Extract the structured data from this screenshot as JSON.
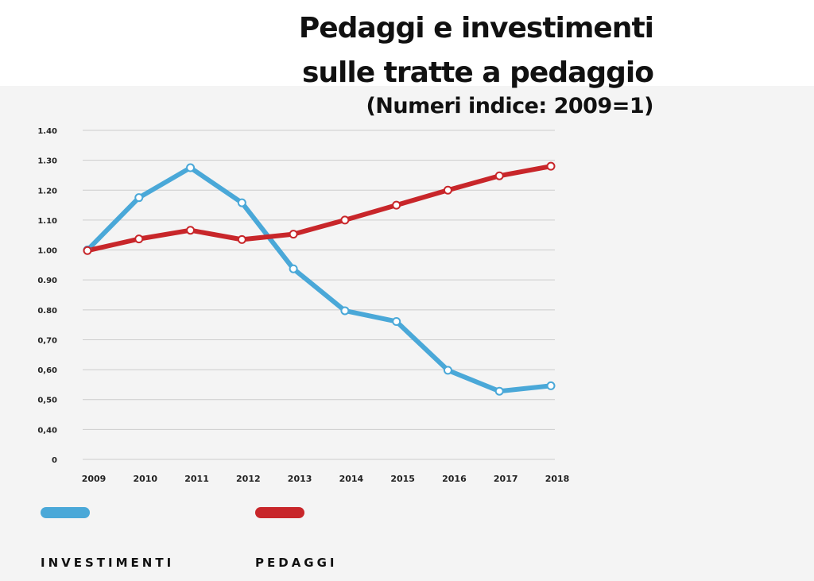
{
  "title_lines": [
    "Pedaggi e investimenti",
    "sulle tratte a pedaggio"
  ],
  "subtitle": "(Numeri indice: 2009=1)",
  "colors": {
    "investimenti": "#4aa8d8",
    "pedaggi": "#c8262a",
    "grid": "#cccccc",
    "panel": "#f4f4f4"
  },
  "legend": [
    {
      "label": "INVESTIMENTI",
      "color": "#4aa8d8"
    },
    {
      "label": "PEDAGGI",
      "color": "#c8262a"
    }
  ],
  "chart_data": {
    "type": "line",
    "x": [
      "2009",
      "2010",
      "2011",
      "2012",
      "2013",
      "2014",
      "2015",
      "2016",
      "2017",
      "2018"
    ],
    "y_ticks": [
      {
        "value": 0.0,
        "label": "0"
      },
      {
        "value": 0.4,
        "label": "0,40"
      },
      {
        "value": 0.5,
        "label": "0,50"
      },
      {
        "value": 0.6,
        "label": "0,60"
      },
      {
        "value": 0.7,
        "label": "0,70"
      },
      {
        "value": 0.8,
        "label": "0.80"
      },
      {
        "value": 0.9,
        "label": "0.90"
      },
      {
        "value": 1.0,
        "label": "1.00"
      },
      {
        "value": 1.1,
        "label": "1.10"
      },
      {
        "value": 1.2,
        "label": "1.20"
      },
      {
        "value": 1.3,
        "label": "1.30"
      },
      {
        "value": 1.4,
        "label": "1.40"
      }
    ],
    "ylim": [
      0,
      1.4
    ],
    "grid": true,
    "legend_position": "bottom-left",
    "series": [
      {
        "name": "INVESTIMENTI",
        "values": [
          1.0,
          1.175,
          1.275,
          1.158,
          0.937,
          0.797,
          0.761,
          0.598,
          0.528,
          0.546
        ]
      },
      {
        "name": "PEDAGGI",
        "values": [
          0.998,
          1.037,
          1.066,
          1.035,
          1.053,
          1.1,
          1.15,
          1.2,
          1.248,
          1.28
        ]
      }
    ]
  }
}
